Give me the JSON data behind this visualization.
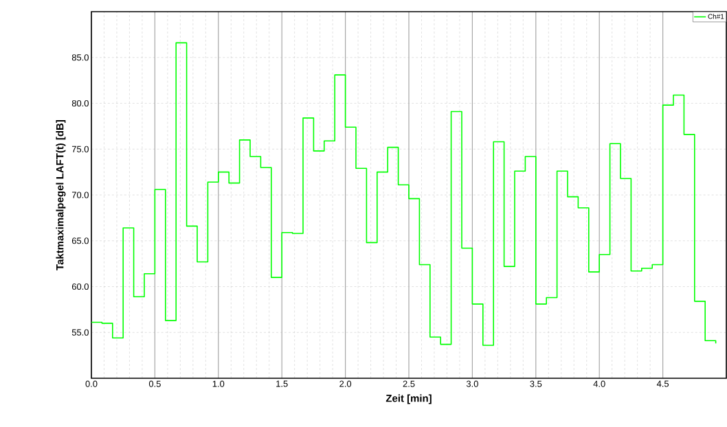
{
  "chart_data": {
    "type": "step",
    "xlabel": "Zeit [min]",
    "ylabel": "Taktmaximalpegel LAFT(t) [dB]",
    "x": [
      0,
      0.0833,
      0.1667,
      0.25,
      0.3333,
      0.4167,
      0.5,
      0.5833,
      0.6667,
      0.75,
      0.8333,
      0.9167,
      1.0,
      1.0833,
      1.1667,
      1.25,
      1.3333,
      1.4167,
      1.5,
      1.5833,
      1.6667,
      1.75,
      1.8333,
      1.9167,
      2.0,
      2.0833,
      2.1667,
      2.25,
      2.3333,
      2.4167,
      2.5,
      2.5833,
      2.6667,
      2.75,
      2.8333,
      2.9167,
      3.0,
      3.0833,
      3.1667,
      3.25,
      3.3333,
      3.4167,
      3.5,
      3.5833,
      3.6667,
      3.75,
      3.8333,
      3.9167,
      4.0,
      4.0833,
      4.1667,
      4.25,
      4.3333,
      4.4167,
      4.5,
      4.5833,
      4.6667,
      4.75,
      4.8333,
      4.9167
    ],
    "series": [
      {
        "name": "Ch#1",
        "color": "#00ff00",
        "values": [
          56.1,
          56.0,
          54.4,
          66.4,
          58.9,
          61.4,
          70.6,
          56.3,
          86.6,
          66.6,
          62.7,
          71.4,
          72.5,
          71.3,
          76.0,
          74.2,
          73.0,
          61.0,
          65.9,
          65.8,
          78.4,
          74.8,
          75.9,
          83.1,
          77.4,
          72.9,
          64.8,
          72.5,
          75.2,
          71.1,
          69.6,
          62.4,
          54.5,
          53.7,
          79.1,
          64.2,
          58.1,
          53.6,
          75.8,
          62.2,
          72.6,
          74.2,
          58.1,
          58.8,
          72.6,
          69.8,
          68.6,
          61.6,
          63.5,
          75.6,
          71.8,
          61.7,
          62.0,
          62.4,
          79.8,
          80.9,
          76.6,
          58.4,
          54.1,
          53.8
        ]
      }
    ],
    "xlim": [
      0,
      5
    ],
    "ylim": [
      50,
      90
    ],
    "xticks": [
      {
        "value": 0,
        "label": "0.0"
      },
      0.5,
      {
        "value": 1,
        "label": "1.0"
      },
      1.5,
      {
        "value": 2,
        "label": "2.0"
      },
      2.5,
      {
        "value": 3,
        "label": "3.0"
      },
      3.5,
      {
        "value": 4,
        "label": "4.0"
      },
      4.5
    ],
    "yticks": [
      {
        "value": 55,
        "label": "55.0"
      },
      {
        "value": 60,
        "label": "60.0"
      },
      {
        "value": 65,
        "label": "65.0"
      },
      {
        "value": 70,
        "label": "70.0"
      },
      {
        "value": 75,
        "label": "75.0"
      },
      {
        "value": 80,
        "label": "80.0"
      },
      {
        "value": 85,
        "label": "85.0"
      }
    ],
    "grid": true,
    "legend": "top right"
  }
}
